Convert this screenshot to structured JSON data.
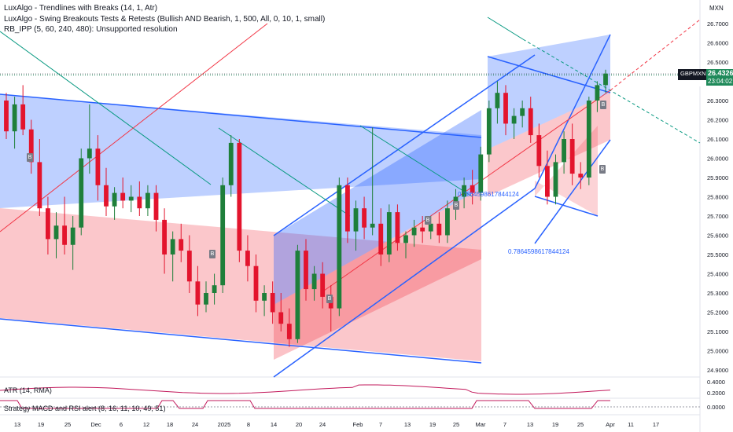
{
  "indicators": {
    "line1": "LuxAlgo - Trendlines with Breaks (14, 1, Atr)",
    "line2": "LuxAlgo - Swing Breakouts Tests & Retests (Bullish AND Bearish, 1, 500, All, 0, 10, 1, small)",
    "line3": "RB_IPP (5, 60, 240, 480): Unsupported resolution"
  },
  "currency": "MXN",
  "price_badge": {
    "symbol": "GBPMXN",
    "price": "26.4326",
    "countdown": "23:04:02"
  },
  "fib_labels": [
    "0.7864598617844124",
    "0.7864598617844124"
  ],
  "marker_letter": "B",
  "atr_label": "ATR (14, RMA)",
  "strategy_label": "Strategy MACD and RSI alert (8, 16, 11, 10, 49, 51)",
  "colors": {
    "up": "#1e7f3a",
    "down": "#e3142d",
    "blue_fill": "#2962ff",
    "red_fill": "#f23645",
    "channel_line": "#2962ff",
    "trend_line": "#089981",
    "red_line": "#f23645",
    "atr_line": "#c2185b"
  },
  "chart_data": {
    "type": "candlestick",
    "symbol": "GBPMXN",
    "currency": "MXN",
    "y_ticks": [
      "26.7000",
      "26.6000",
      "26.5000",
      "26.4000",
      "26.3000",
      "26.2000",
      "26.1000",
      "26.0000",
      "25.9000",
      "25.8000",
      "25.7000",
      "25.6000",
      "25.5000",
      "25.4000",
      "25.3000",
      "25.2000",
      "25.1000",
      "25.0000",
      "24.9000"
    ],
    "x_ticks": [
      "13",
      "19",
      "25",
      "Dec",
      "6",
      "12",
      "18",
      "24",
      "2025",
      "8",
      "14",
      "20",
      "24",
      "Feb",
      "7",
      "13",
      "19",
      "25",
      "Mar",
      "7",
      "13",
      "19",
      "25",
      "Apr",
      "11",
      "17"
    ],
    "last_price": 26.4326,
    "atr_ticks": [
      "0.4000",
      "0.2000"
    ],
    "strategy_ticks": [
      "0.0000"
    ],
    "candles": [
      [
        26.3,
        26.34,
        26.1,
        26.14
      ],
      [
        26.14,
        26.32,
        26.05,
        26.28
      ],
      [
        26.28,
        26.38,
        26.12,
        26.15
      ],
      [
        26.15,
        26.2,
        25.92,
        25.98
      ],
      [
        25.98,
        26.1,
        25.7,
        25.74
      ],
      [
        25.74,
        25.8,
        25.5,
        25.58
      ],
      [
        25.58,
        25.72,
        25.48,
        25.65
      ],
      [
        25.65,
        25.8,
        25.5,
        25.55
      ],
      [
        25.55,
        25.7,
        25.42,
        25.64
      ],
      [
        25.64,
        26.05,
        25.6,
        26.0
      ],
      [
        26.0,
        26.28,
        25.92,
        26.05
      ],
      [
        26.05,
        26.12,
        25.78,
        25.86
      ],
      [
        25.86,
        25.95,
        25.7,
        25.75
      ],
      [
        25.75,
        25.85,
        25.68,
        25.82
      ],
      [
        25.82,
        25.9,
        25.74,
        25.78
      ],
      [
        25.78,
        25.86,
        25.72,
        25.8
      ],
      [
        25.8,
        25.88,
        25.7,
        25.74
      ],
      [
        25.74,
        25.86,
        25.7,
        25.82
      ],
      [
        25.82,
        25.86,
        25.62,
        25.68
      ],
      [
        25.68,
        25.74,
        25.4,
        25.5
      ],
      [
        25.5,
        25.62,
        25.36,
        25.58
      ],
      [
        25.58,
        25.66,
        25.46,
        25.52
      ],
      [
        25.52,
        25.6,
        25.3,
        25.36
      ],
      [
        25.36,
        25.44,
        25.18,
        25.24
      ],
      [
        25.24,
        25.36,
        25.2,
        25.3
      ],
      [
        25.3,
        25.4,
        25.24,
        25.34
      ],
      [
        25.34,
        25.9,
        25.3,
        25.86
      ],
      [
        25.86,
        26.12,
        25.8,
        26.08
      ],
      [
        26.08,
        26.1,
        25.46,
        25.52
      ],
      [
        25.52,
        25.6,
        25.36,
        25.44
      ],
      [
        25.44,
        25.5,
        25.2,
        25.26
      ],
      [
        25.26,
        25.34,
        25.18,
        25.3
      ],
      [
        25.3,
        25.36,
        25.14,
        25.2
      ],
      [
        25.2,
        25.3,
        25.1,
        25.14
      ],
      [
        25.14,
        25.22,
        25.02,
        25.06
      ],
      [
        25.06,
        25.55,
        25.04,
        25.52
      ],
      [
        25.52,
        25.58,
        25.26,
        25.32
      ],
      [
        25.32,
        25.44,
        25.26,
        25.4
      ],
      [
        25.4,
        25.46,
        25.22,
        25.28
      ],
      [
        25.28,
        25.34,
        25.1,
        25.22
      ],
      [
        25.22,
        25.9,
        25.18,
        25.86
      ],
      [
        25.86,
        25.9,
        25.56,
        25.62
      ],
      [
        25.62,
        25.78,
        25.52,
        25.74
      ],
      [
        25.74,
        25.8,
        25.58,
        25.64
      ],
      [
        25.64,
        26.16,
        25.6,
        25.66
      ],
      [
        25.66,
        25.74,
        25.44,
        25.5
      ],
      [
        25.5,
        25.76,
        25.46,
        25.72
      ],
      [
        25.72,
        25.76,
        25.52,
        25.56
      ],
      [
        25.56,
        25.62,
        25.48,
        25.6
      ],
      [
        25.6,
        25.68,
        25.54,
        25.64
      ],
      [
        25.64,
        25.7,
        25.56,
        25.62
      ],
      [
        25.62,
        25.7,
        25.58,
        25.66
      ],
      [
        25.66,
        25.72,
        25.56,
        25.6
      ],
      [
        25.6,
        25.78,
        25.56,
        25.74
      ],
      [
        25.74,
        25.84,
        25.68,
        25.8
      ],
      [
        25.8,
        25.9,
        25.74,
        25.86
      ],
      [
        25.86,
        25.94,
        25.76,
        25.82
      ],
      [
        25.82,
        26.06,
        25.78,
        26.02
      ],
      [
        26.02,
        26.3,
        25.98,
        26.26
      ],
      [
        26.26,
        26.4,
        26.18,
        26.34
      ],
      [
        26.34,
        26.38,
        26.12,
        26.18
      ],
      [
        26.18,
        26.26,
        26.1,
        26.22
      ],
      [
        26.22,
        26.3,
        26.16,
        26.26
      ],
      [
        26.26,
        26.32,
        26.08,
        26.12
      ],
      [
        26.12,
        26.18,
        25.9,
        25.96
      ],
      [
        25.96,
        26.04,
        25.76,
        25.8
      ],
      [
        25.8,
        26.02,
        25.76,
        25.98
      ],
      [
        25.98,
        26.14,
        25.92,
        26.1
      ],
      [
        26.1,
        26.18,
        25.86,
        25.92
      ],
      [
        25.92,
        25.98,
        25.84,
        25.9
      ],
      [
        25.9,
        26.32,
        25.86,
        26.3
      ],
      [
        26.3,
        26.4,
        26.24,
        26.38
      ],
      [
        26.38,
        26.46,
        26.34,
        26.44
      ]
    ]
  }
}
